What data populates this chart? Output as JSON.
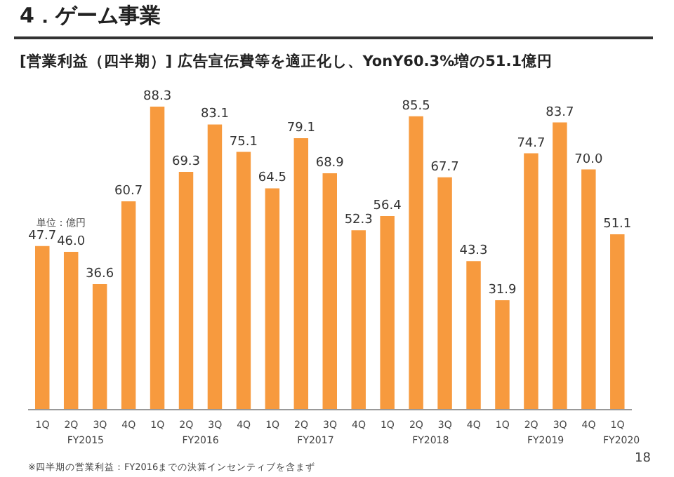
{
  "chart_data": {
    "type": "bar",
    "title": "4．ゲーム事業",
    "subtitle": "[営業利益（四半期）]  広告宣伝費等を適正化し、YonY60.3%増の51.1億円",
    "categories": [
      "1Q",
      "2Q",
      "3Q",
      "4Q",
      "1Q",
      "2Q",
      "3Q",
      "4Q",
      "1Q",
      "2Q",
      "3Q",
      "4Q",
      "1Q",
      "2Q",
      "3Q",
      "4Q",
      "1Q",
      "2Q",
      "3Q",
      "4Q",
      "1Q"
    ],
    "values": [
      47.7,
      46.0,
      36.6,
      60.7,
      88.3,
      69.3,
      83.1,
      75.1,
      64.5,
      79.1,
      68.9,
      52.3,
      56.4,
      85.5,
      67.7,
      43.3,
      31.9,
      74.7,
      83.7,
      70.0,
      51.1
    ],
    "value_labels": [
      "47.7",
      "46.0",
      "36.6",
      "60.7",
      "88.3",
      "69.3",
      "83.1",
      "75.1",
      "64.5",
      "79.1",
      "68.9",
      "52.3",
      "56.4",
      "85.5",
      "67.7",
      "43.3",
      "31.9",
      "74.7",
      "83.7",
      "70.0",
      "51.1"
    ],
    "color": "#f79a3e",
    "grid": false,
    "legend": false,
    "annotations": [
      "FY2015",
      "FY2016",
      "FY2017",
      "FY2018",
      "FY2019",
      "FY2020",
      "単位：億円",
      "※四半期の営業利益：FY2016までの決算インセンティブを含まず",
      "18"
    ]
  }
}
